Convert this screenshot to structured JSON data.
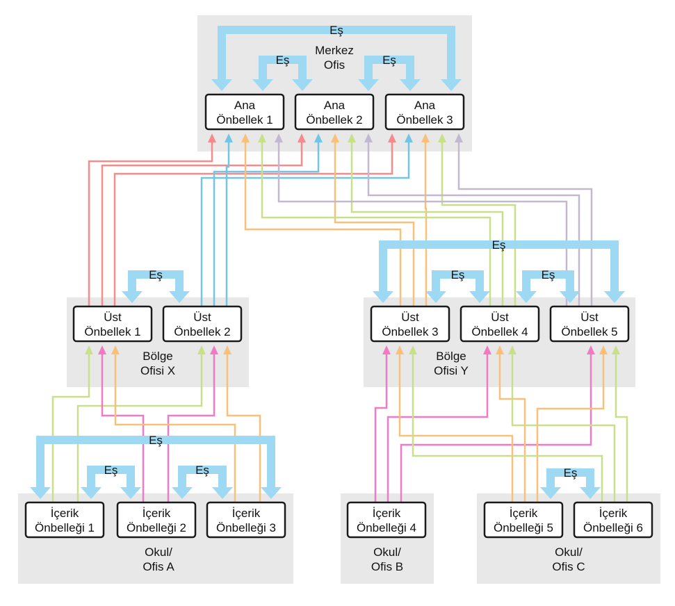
{
  "peer_label": "Eş",
  "colors": {
    "region": "#e8e8e8",
    "peer": "#9dd9f3",
    "red": "#f78a8a",
    "blue": "#73c5e8",
    "orange": "#f9c07a",
    "green": "#c8e08a",
    "purple": "#c4b8d0",
    "pink": "#f27ac4"
  },
  "groups": [
    {
      "id": "merkez",
      "line1": "Merkez",
      "line2": "Ofis"
    },
    {
      "id": "bolgex",
      "line1": "Bölge",
      "line2": "Ofisi X"
    },
    {
      "id": "bolgey",
      "line1": "Bölge",
      "line2": "Ofisi Y"
    },
    {
      "id": "okula",
      "line1": "Okul/",
      "line2": "Ofis A"
    },
    {
      "id": "okulb",
      "line1": "Okul/",
      "line2": "Ofis B"
    },
    {
      "id": "okulc",
      "line1": "Okul/",
      "line2": "Ofis C"
    }
  ],
  "nodes": [
    {
      "id": "ana1",
      "line1": "Ana",
      "line2": "Önbellek 1"
    },
    {
      "id": "ana2",
      "line1": "Ana",
      "line2": "Önbellek 2"
    },
    {
      "id": "ana3",
      "line1": "Ana",
      "line2": "Önbellek 3"
    },
    {
      "id": "ust1",
      "line1": "Üst",
      "line2": "Önbellek 1"
    },
    {
      "id": "ust2",
      "line1": "Üst",
      "line2": "Önbellek 2"
    },
    {
      "id": "ust3",
      "line1": "Üst",
      "line2": "Önbellek 3"
    },
    {
      "id": "ust4",
      "line1": "Üst",
      "line2": "Önbellek 4"
    },
    {
      "id": "ust5",
      "line1": "Üst",
      "line2": "Önbellek 5"
    },
    {
      "id": "icerik1",
      "line1": "İçerik",
      "line2": "Önbelleği 1"
    },
    {
      "id": "icerik2",
      "line1": "İçerik",
      "line2": "Önbelleği 2"
    },
    {
      "id": "icerik3",
      "line1": "İçerik",
      "line2": "Önbelleği 3"
    },
    {
      "id": "icerik4",
      "line1": "İçerik",
      "line2": "Önbelleği 4"
    },
    {
      "id": "icerik5",
      "line1": "İçerik",
      "line2": "Önbelleği 5"
    },
    {
      "id": "icerik6",
      "line1": "İçerik",
      "line2": "Önbelleği 6"
    }
  ],
  "peers": [
    [
      "ana1",
      "ana3"
    ],
    [
      "ana1",
      "ana2"
    ],
    [
      "ana2",
      "ana3"
    ],
    [
      "ust1",
      "ust2"
    ],
    [
      "ust3",
      "ust5"
    ],
    [
      "ust3",
      "ust4"
    ],
    [
      "ust4",
      "ust5"
    ],
    [
      "icerik1",
      "icerik3"
    ],
    [
      "icerik1",
      "icerik2"
    ],
    [
      "icerik2",
      "icerik3"
    ],
    [
      "icerik5",
      "icerik6"
    ]
  ],
  "edges": [
    {
      "from": "ust1",
      "to": "ana1",
      "color": "red"
    },
    {
      "from": "ust1",
      "to": "ana2",
      "color": "red"
    },
    {
      "from": "ust1",
      "to": "ana3",
      "color": "red"
    },
    {
      "from": "ust2",
      "to": "ana1",
      "color": "blue"
    },
    {
      "from": "ust2",
      "to": "ana2",
      "color": "blue"
    },
    {
      "from": "ust2",
      "to": "ana3",
      "color": "blue"
    },
    {
      "from": "ust3",
      "to": "ana1",
      "color": "orange"
    },
    {
      "from": "ust3",
      "to": "ana2",
      "color": "orange"
    },
    {
      "from": "ust3",
      "to": "ana3",
      "color": "orange"
    },
    {
      "from": "ust4",
      "to": "ana1",
      "color": "green"
    },
    {
      "from": "ust4",
      "to": "ana2",
      "color": "green"
    },
    {
      "from": "ust4",
      "to": "ana3",
      "color": "green"
    },
    {
      "from": "ust5",
      "to": "ana1",
      "color": "purple"
    },
    {
      "from": "ust5",
      "to": "ana2",
      "color": "purple"
    },
    {
      "from": "ust5",
      "to": "ana3",
      "color": "purple"
    },
    {
      "from": "icerik1",
      "to": "ust1",
      "color": "green"
    },
    {
      "from": "icerik1",
      "to": "ust2",
      "color": "green"
    },
    {
      "from": "icerik2",
      "to": "ust1",
      "color": "pink"
    },
    {
      "from": "icerik2",
      "to": "ust2",
      "color": "pink"
    },
    {
      "from": "icerik3",
      "to": "ust1",
      "color": "orange"
    },
    {
      "from": "icerik3",
      "to": "ust2",
      "color": "orange"
    },
    {
      "from": "icerik4",
      "to": "ust3",
      "color": "pink"
    },
    {
      "from": "icerik4",
      "to": "ust4",
      "color": "pink"
    },
    {
      "from": "icerik4",
      "to": "ust5",
      "color": "pink"
    },
    {
      "from": "icerik5",
      "to": "ust3",
      "color": "orange"
    },
    {
      "from": "icerik5",
      "to": "ust4",
      "color": "orange"
    },
    {
      "from": "icerik5",
      "to": "ust5",
      "color": "orange"
    },
    {
      "from": "icerik6",
      "to": "ust3",
      "color": "green"
    },
    {
      "from": "icerik6",
      "to": "ust4",
      "color": "green"
    },
    {
      "from": "icerik6",
      "to": "ust5",
      "color": "green"
    }
  ]
}
